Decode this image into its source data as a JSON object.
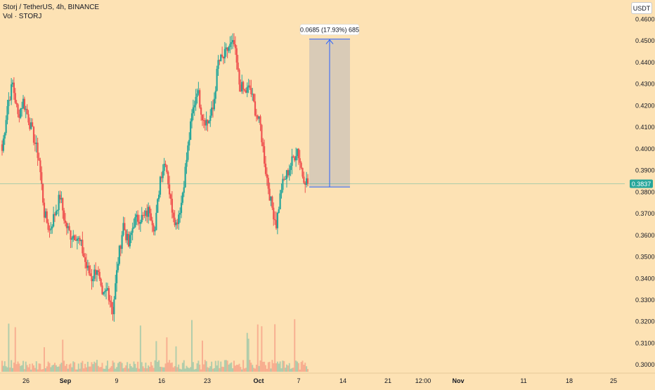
{
  "legend": {
    "symbol_line": "Storj / TetherUS, 4h, BINANCE",
    "volume_line": "Vol · STORJ"
  },
  "currency_button": "USDT",
  "last_price_label": "0.3837",
  "measure_label": "0.0685 (17.93%) 685",
  "colors": {
    "background": "#fde2b4",
    "up": "#26a69a",
    "down": "#ef5350",
    "measure_fill": "#c9c2b8",
    "measure_line": "#2962ff",
    "last_price": "#26a69a"
  },
  "chart_data": {
    "type": "candlestick",
    "y_axis": {
      "side": "right",
      "tick_labels": [
        "0.4600",
        "0.4500",
        "0.4400",
        "0.4300",
        "0.4200",
        "0.4100",
        "0.4000",
        "0.3900",
        "0.3800",
        "0.3700",
        "0.3600",
        "0.3500",
        "0.3400",
        "0.3300",
        "0.3200",
        "0.3100",
        "0.3000"
      ],
      "tick_values": [
        0.46,
        0.45,
        0.44,
        0.43,
        0.42,
        0.41,
        0.4,
        0.39,
        0.38,
        0.37,
        0.36,
        0.35,
        0.34,
        0.33,
        0.32,
        0.31,
        0.3
      ],
      "range": [
        0.2958,
        0.4661
      ]
    },
    "x_axis": {
      "tick_labels": [
        "26",
        "Sep",
        "9",
        "16",
        "23",
        "Oct",
        "7",
        "14",
        "21",
        "12:00",
        "Nov",
        "11",
        "18",
        "25"
      ],
      "bold_labels": [
        "Sep",
        "Oct",
        "Nov"
      ]
    },
    "last_price": 0.3837,
    "closes": [
      0.399,
      0.42,
      0.43,
      0.415,
      0.422,
      0.414,
      0.405,
      0.395,
      0.37,
      0.362,
      0.37,
      0.378,
      0.365,
      0.36,
      0.36,
      0.355,
      0.345,
      0.34,
      0.345,
      0.33,
      0.335,
      0.325,
      0.348,
      0.365,
      0.355,
      0.366,
      0.368,
      0.368,
      0.372,
      0.362,
      0.387,
      0.395,
      0.375,
      0.365,
      0.375,
      0.395,
      0.415,
      0.428,
      0.415,
      0.412,
      0.418,
      0.44,
      0.442,
      0.447,
      0.448,
      0.43,
      0.426,
      0.428,
      0.418,
      0.41,
      0.39,
      0.375,
      0.365,
      0.382,
      0.388,
      0.394,
      0.4,
      0.388,
      0.3837
    ],
    "measure": {
      "from_price": 0.3822,
      "to_price": 0.4507,
      "change": "0.0685",
      "percent": "17.93%",
      "bars": "685"
    }
  }
}
